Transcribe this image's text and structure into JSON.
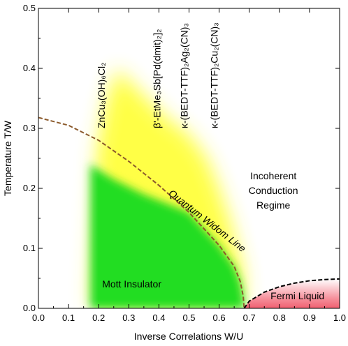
{
  "chart_data": {
    "type": "area",
    "xlabel": "Inverse Correlations W/U",
    "ylabel": "Temperature T/W",
    "xlim": [
      0.0,
      1.0
    ],
    "ylim": [
      0.0,
      0.5
    ],
    "x_ticks": [
      "0.0",
      "0.1",
      "0.2",
      "0.3",
      "0.4",
      "0.5",
      "0.6",
      "0.7",
      "0.8",
      "0.9",
      "1.0"
    ],
    "y_ticks": [
      "0.0",
      "0.1",
      "0.2",
      "0.3",
      "0.4",
      "0.5"
    ],
    "grid": false,
    "regions": [
      {
        "name": "Mott Insulator",
        "label_x": 0.31,
        "label_y": 0.035,
        "color": "#22dd22"
      },
      {
        "name": "Fermi Liquid",
        "label_x": 0.86,
        "label_y": 0.015,
        "color": "#f06070"
      },
      {
        "name": "Incoherent Conduction Regime",
        "lines": [
          "Incoherent",
          "Conduction",
          "Regime"
        ],
        "label_x": 0.78,
        "label_y": 0.215
      }
    ],
    "series": [
      {
        "name": "Quantum Widom Line",
        "style": "dashed",
        "color": "#8b5a2b",
        "x": [
          0.0,
          0.1,
          0.2,
          0.3,
          0.4,
          0.5,
          0.6,
          0.65,
          0.67,
          0.68,
          0.683
        ],
        "y": [
          0.318,
          0.305,
          0.28,
          0.245,
          0.205,
          0.16,
          0.105,
          0.07,
          0.045,
          0.02,
          0.0
        ]
      },
      {
        "name": "Fermi liquid boundary",
        "style": "dashed",
        "color": "#000000",
        "x": [
          0.683,
          0.7,
          0.75,
          0.8,
          0.85,
          0.9,
          0.95,
          1.0
        ],
        "y": [
          0.0,
          0.012,
          0.027,
          0.036,
          0.042,
          0.046,
          0.048,
          0.049
        ]
      }
    ],
    "materials": [
      {
        "x": 0.22,
        "y": 0.3,
        "text": "ZnCu₃(OH)₆Cl₂"
      },
      {
        "x": 0.405,
        "y": 0.3,
        "text": "β'-EtMe₃Sb[Pd(dmit)₂]₂"
      },
      {
        "x": 0.495,
        "y": 0.3,
        "text": "κ-(BEDT-TTF)₂Ag₂(CN)₃"
      },
      {
        "x": 0.595,
        "y": 0.3,
        "text": "κ-(BEDT-TTF)₂Cu₂(CN)₃"
      }
    ],
    "annotations": [
      {
        "text": "Quantum Widom Line",
        "x": 0.43,
        "y": 0.19,
        "angle": 38
      }
    ],
    "colors": {
      "yellow": "#ffff30",
      "green": "#22dd22",
      "pink": "#f06070",
      "widom": "#8b5a2b"
    }
  }
}
